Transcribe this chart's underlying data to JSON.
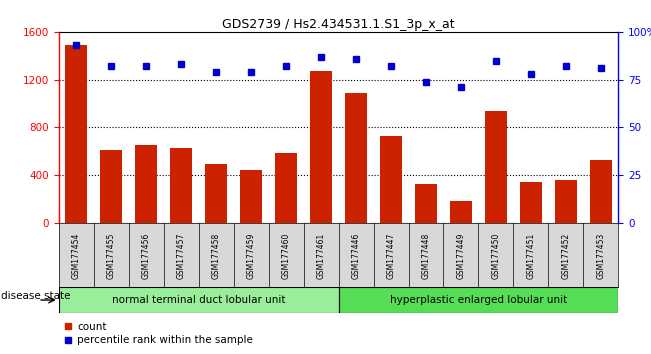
{
  "title": "GDS2739 / Hs2.434531.1.S1_3p_x_at",
  "samples": [
    "GSM177454",
    "GSM177455",
    "GSM177456",
    "GSM177457",
    "GSM177458",
    "GSM177459",
    "GSM177460",
    "GSM177461",
    "GSM177446",
    "GSM177447",
    "GSM177448",
    "GSM177449",
    "GSM177450",
    "GSM177451",
    "GSM177452",
    "GSM177453"
  ],
  "counts": [
    1490,
    610,
    650,
    625,
    490,
    440,
    590,
    1270,
    1090,
    730,
    330,
    185,
    940,
    340,
    360,
    530
  ],
  "percentiles": [
    93,
    82,
    82,
    83,
    79,
    79,
    82,
    87,
    86,
    82,
    74,
    71,
    85,
    78,
    82,
    81
  ],
  "group1_count": 8,
  "group2_count": 8,
  "group1_label": "normal terminal duct lobular unit",
  "group2_label": "hyperplastic enlarged lobular unit",
  "disease_state_label": "disease state",
  "bar_color": "#cc2200",
  "dot_color": "#0000cc",
  "group1_color": "#99ee99",
  "group2_color": "#55dd55",
  "ylim_left": [
    0,
    1600
  ],
  "ylim_right": [
    0,
    100
  ],
  "yticks_left": [
    0,
    400,
    800,
    1200,
    1600
  ],
  "yticks_right": [
    0,
    25,
    50,
    75,
    100
  ],
  "grid_lines": [
    400,
    800,
    1200
  ],
  "background_color": "#ffffff"
}
